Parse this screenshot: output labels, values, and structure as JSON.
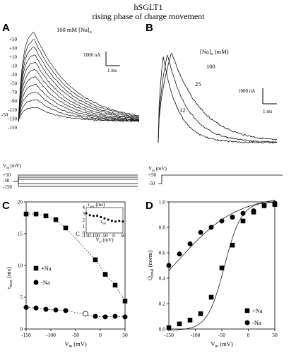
{
  "figure": {
    "title_line1": "hSGLT1",
    "title_line2": "rising phase of charge movement",
    "panel_a": {
      "label": "A",
      "annotation": "100 mM [Na]",
      "annotation_sub": "o",
      "trace_labels": [
        "+50",
        "+30",
        "+10",
        "-10",
        "-30",
        "-50",
        "-70",
        "-90",
        "-110",
        "-130",
        "-150"
      ],
      "hold_label": "-50",
      "scale_current": "1000 nA",
      "scale_time": "1 ms",
      "protocol_label": "V",
      "protocol_label_sub": "m",
      "protocol_unit": " (mV)",
      "protocol_levels": [
        "+50",
        "-50",
        "-150"
      ]
    },
    "panel_b": {
      "label": "B",
      "annotation": "[Na]",
      "annotation_sub": "o",
      "annotation_unit": " (mM)",
      "trace_labels": [
        "100",
        "25",
        "12"
      ],
      "scale_current": "1000 nA",
      "scale_time": "1 ms",
      "protocol_label": "V",
      "protocol_label_sub": "m",
      "protocol_unit": " (mV)",
      "protocol_levels": [
        "+50",
        "-50"
      ]
    }
  },
  "chart_data": [
    {
      "panel": "C",
      "type": "scatter",
      "xlabel": "V",
      "xlabel_sub": "m",
      "xlabel_unit": " (mV)",
      "ylabel": "τ",
      "ylabel_sub": "max",
      "ylabel_unit": " (ms)",
      "xlim": [
        -150,
        50
      ],
      "ylim": [
        0,
        20
      ],
      "xticks": [
        "-150",
        "-100",
        "-50",
        "0",
        "50"
      ],
      "yticks": [
        "0",
        "5",
        "10",
        "15",
        "20"
      ],
      "legend": {
        "placement": "center-left",
        "entries": [
          "+Na",
          "-Na"
        ]
      },
      "series": [
        {
          "name": "+Na",
          "marker": "square",
          "x": [
            -150,
            -130,
            -110,
            -90,
            -70,
            -10,
            10,
            30,
            50
          ],
          "y": [
            18.1,
            18.1,
            17.8,
            17.2,
            15.9,
            10.9,
            8.6,
            6.9,
            4.4
          ]
        },
        {
          "name": "-Na",
          "marker": "circle",
          "x": [
            -150,
            -130,
            -110,
            -90,
            -70,
            -10,
            10,
            30,
            50
          ],
          "y": [
            3.4,
            3.3,
            3.1,
            3.0,
            2.9,
            2.0,
            1.9,
            2.0,
            1.9
          ]
        },
        {
          "name": "",
          "marker": "open-circle",
          "x": [
            -30
          ],
          "y": [
            2.4
          ]
        }
      ],
      "inset": {
        "ylabel": "τ",
        "ylabel_sub": "max",
        "ylabel_unit": " (ms)",
        "xlabel": "V",
        "xlabel_sub": "m",
        "xlabel_unit": " (mV)",
        "panel_tag": "C",
        "curve_label": "τ",
        "curve_label_sub": "fall",
        "xlim": [
          -150,
          50
        ],
        "ylim": [
          0,
          4
        ],
        "xticks": [
          "-150",
          "-100",
          "-50",
          "0",
          "50"
        ],
        "yticks": [
          "0",
          "1",
          "2",
          "3",
          "4"
        ],
        "x": [
          -150,
          -130,
          -110,
          -90,
          -70,
          -50,
          -30,
          -10,
          10,
          30,
          50
        ],
        "y": [
          3.1,
          2.8,
          2.7,
          2.7,
          2.5,
          2.3,
          2.1,
          1.9,
          1.8,
          1.9,
          1.8
        ]
      }
    },
    {
      "panel": "D",
      "type": "scatter",
      "xlabel": "V",
      "xlabel_sub": "m",
      "xlabel_unit": " (mV)",
      "ylabel": "Q",
      "ylabel_sub": "total",
      "ylabel_unit": " (norm)",
      "xlim": [
        -150,
        50
      ],
      "ylim": [
        0,
        1.0
      ],
      "xticks": [
        "-150",
        "-100",
        "-50",
        "0",
        "50"
      ],
      "yticks": [
        "0.0",
        "0.2",
        "0.4",
        "0.6",
        "0.8",
        "1.0"
      ],
      "legend": {
        "placement": "lower-right",
        "entries": [
          "+Na",
          "-Na"
        ]
      },
      "series": [
        {
          "name": "+Na",
          "marker": "square",
          "x": [
            -150,
            -130,
            -110,
            -90,
            -70,
            -50,
            -30,
            -10,
            10,
            30,
            50
          ],
          "y": [
            0.01,
            0.04,
            0.07,
            0.12,
            0.25,
            0.48,
            0.66,
            0.85,
            0.92,
            0.97,
            0.98
          ]
        },
        {
          "name": "-Na",
          "marker": "circle",
          "x": [
            -150,
            -130,
            -110,
            -90,
            -70,
            -50,
            -30,
            -10,
            10,
            30,
            50
          ],
          "y": [
            0.5,
            0.59,
            0.67,
            0.76,
            0.8,
            0.85,
            0.88,
            0.91,
            0.93,
            0.97,
            0.99
          ]
        }
      ]
    }
  ]
}
